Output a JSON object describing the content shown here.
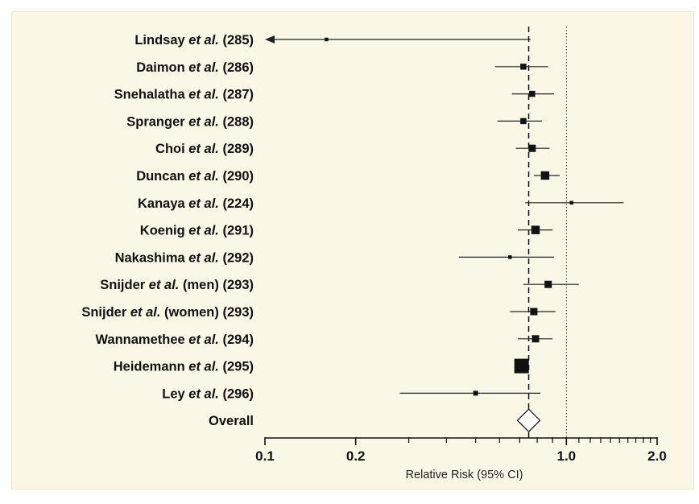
{
  "chart_data": {
    "type": "forest",
    "xlabel": "Relative Risk (95% CI)",
    "xscale": "log",
    "xlim": [
      0.1,
      2.0
    ],
    "xticks": [
      {
        "value": 0.1,
        "label": "0.1"
      },
      {
        "value": 0.2,
        "label": "0.2"
      },
      {
        "value": 1.0,
        "label": "1.0"
      },
      {
        "value": 2.0,
        "label": "2.0"
      }
    ],
    "minor_ticks": [
      0.3,
      0.4,
      0.5,
      0.6,
      0.7,
      0.8,
      0.9,
      1.1,
      1.2,
      1.3,
      1.4,
      1.5,
      1.6,
      1.7,
      1.8,
      1.9
    ],
    "reference_line": 1.0,
    "overall_line": 0.75,
    "studies": [
      {
        "parts": [
          {
            "t": "Lindsay ",
            "i": false
          },
          {
            "t": "et al.",
            "i": true
          },
          {
            "t": " (285)",
            "i": false
          }
        ],
        "rr": 0.16,
        "lo": 0.1,
        "hi": 0.76,
        "weight": 1,
        "truncated_low": true
      },
      {
        "parts": [
          {
            "t": "Daimon ",
            "i": false
          },
          {
            "t": "et al.",
            "i": true
          },
          {
            "t": " (286)",
            "i": false
          }
        ],
        "rr": 0.72,
        "lo": 0.58,
        "hi": 0.87,
        "weight": 3
      },
      {
        "parts": [
          {
            "t": "Snehalatha ",
            "i": false
          },
          {
            "t": "et al.",
            "i": true
          },
          {
            "t": " (287)",
            "i": false
          }
        ],
        "rr": 0.77,
        "lo": 0.66,
        "hi": 0.91,
        "weight": 3
      },
      {
        "parts": [
          {
            "t": "Spranger ",
            "i": false
          },
          {
            "t": "et al.",
            "i": true
          },
          {
            "t": " (288)",
            "i": false
          }
        ],
        "rr": 0.72,
        "lo": 0.59,
        "hi": 0.83,
        "weight": 3
      },
      {
        "parts": [
          {
            "t": "Choi ",
            "i": false
          },
          {
            "t": "et al.",
            "i": true
          },
          {
            "t": " (289)",
            "i": false
          }
        ],
        "rr": 0.77,
        "lo": 0.68,
        "hi": 0.88,
        "weight": 4
      },
      {
        "parts": [
          {
            "t": "Duncan ",
            "i": false
          },
          {
            "t": "et al.",
            "i": true
          },
          {
            "t": " (290)",
            "i": false
          }
        ],
        "rr": 0.85,
        "lo": 0.78,
        "hi": 0.95,
        "weight": 5
      },
      {
        "parts": [
          {
            "t": "Kanaya ",
            "i": false
          },
          {
            "t": "et al.",
            "i": true
          },
          {
            "t": " (224)",
            "i": false
          }
        ],
        "rr": 1.04,
        "lo": 0.73,
        "hi": 1.55,
        "weight": 1
      },
      {
        "parts": [
          {
            "t": "Koenig ",
            "i": false
          },
          {
            "t": "et al.",
            "i": true
          },
          {
            "t": " (291)",
            "i": false
          }
        ],
        "rr": 0.79,
        "lo": 0.69,
        "hi": 0.9,
        "weight": 5
      },
      {
        "parts": [
          {
            "t": "Nakashima ",
            "i": false
          },
          {
            "t": "et al.",
            "i": true
          },
          {
            "t": " (292)",
            "i": false
          }
        ],
        "rr": 0.65,
        "lo": 0.44,
        "hi": 0.91,
        "weight": 1
      },
      {
        "parts": [
          {
            "t": "Snijder ",
            "i": false
          },
          {
            "t": "et al.",
            "i": true
          },
          {
            "t": " (men) (293)",
            "i": false
          }
        ],
        "rr": 0.87,
        "lo": 0.72,
        "hi": 1.1,
        "weight": 4
      },
      {
        "parts": [
          {
            "t": "Snijder ",
            "i": false
          },
          {
            "t": "et al.",
            "i": true
          },
          {
            "t": " (women) (293)",
            "i": false
          }
        ],
        "rr": 0.78,
        "lo": 0.65,
        "hi": 0.92,
        "weight": 4
      },
      {
        "parts": [
          {
            "t": "Wannamethee ",
            "i": false
          },
          {
            "t": "et al.",
            "i": true
          },
          {
            "t": " (294)",
            "i": false
          }
        ],
        "rr": 0.79,
        "lo": 0.69,
        "hi": 0.9,
        "weight": 4
      },
      {
        "parts": [
          {
            "t": "Heidemann ",
            "i": false
          },
          {
            "t": "et al.",
            "i": true
          },
          {
            "t": " (295)",
            "i": false
          }
        ],
        "rr": 0.71,
        "lo": 0.68,
        "hi": 0.75,
        "weight": 10
      },
      {
        "parts": [
          {
            "t": "Ley ",
            "i": false
          },
          {
            "t": "et al.",
            "i": true
          },
          {
            "t": " (296)",
            "i": false
          }
        ],
        "rr": 0.5,
        "lo": 0.28,
        "hi": 0.82,
        "weight": 2
      }
    ],
    "overall": {
      "label": "Overall",
      "rr": 0.75,
      "lo": 0.73,
      "hi": 0.78
    }
  }
}
